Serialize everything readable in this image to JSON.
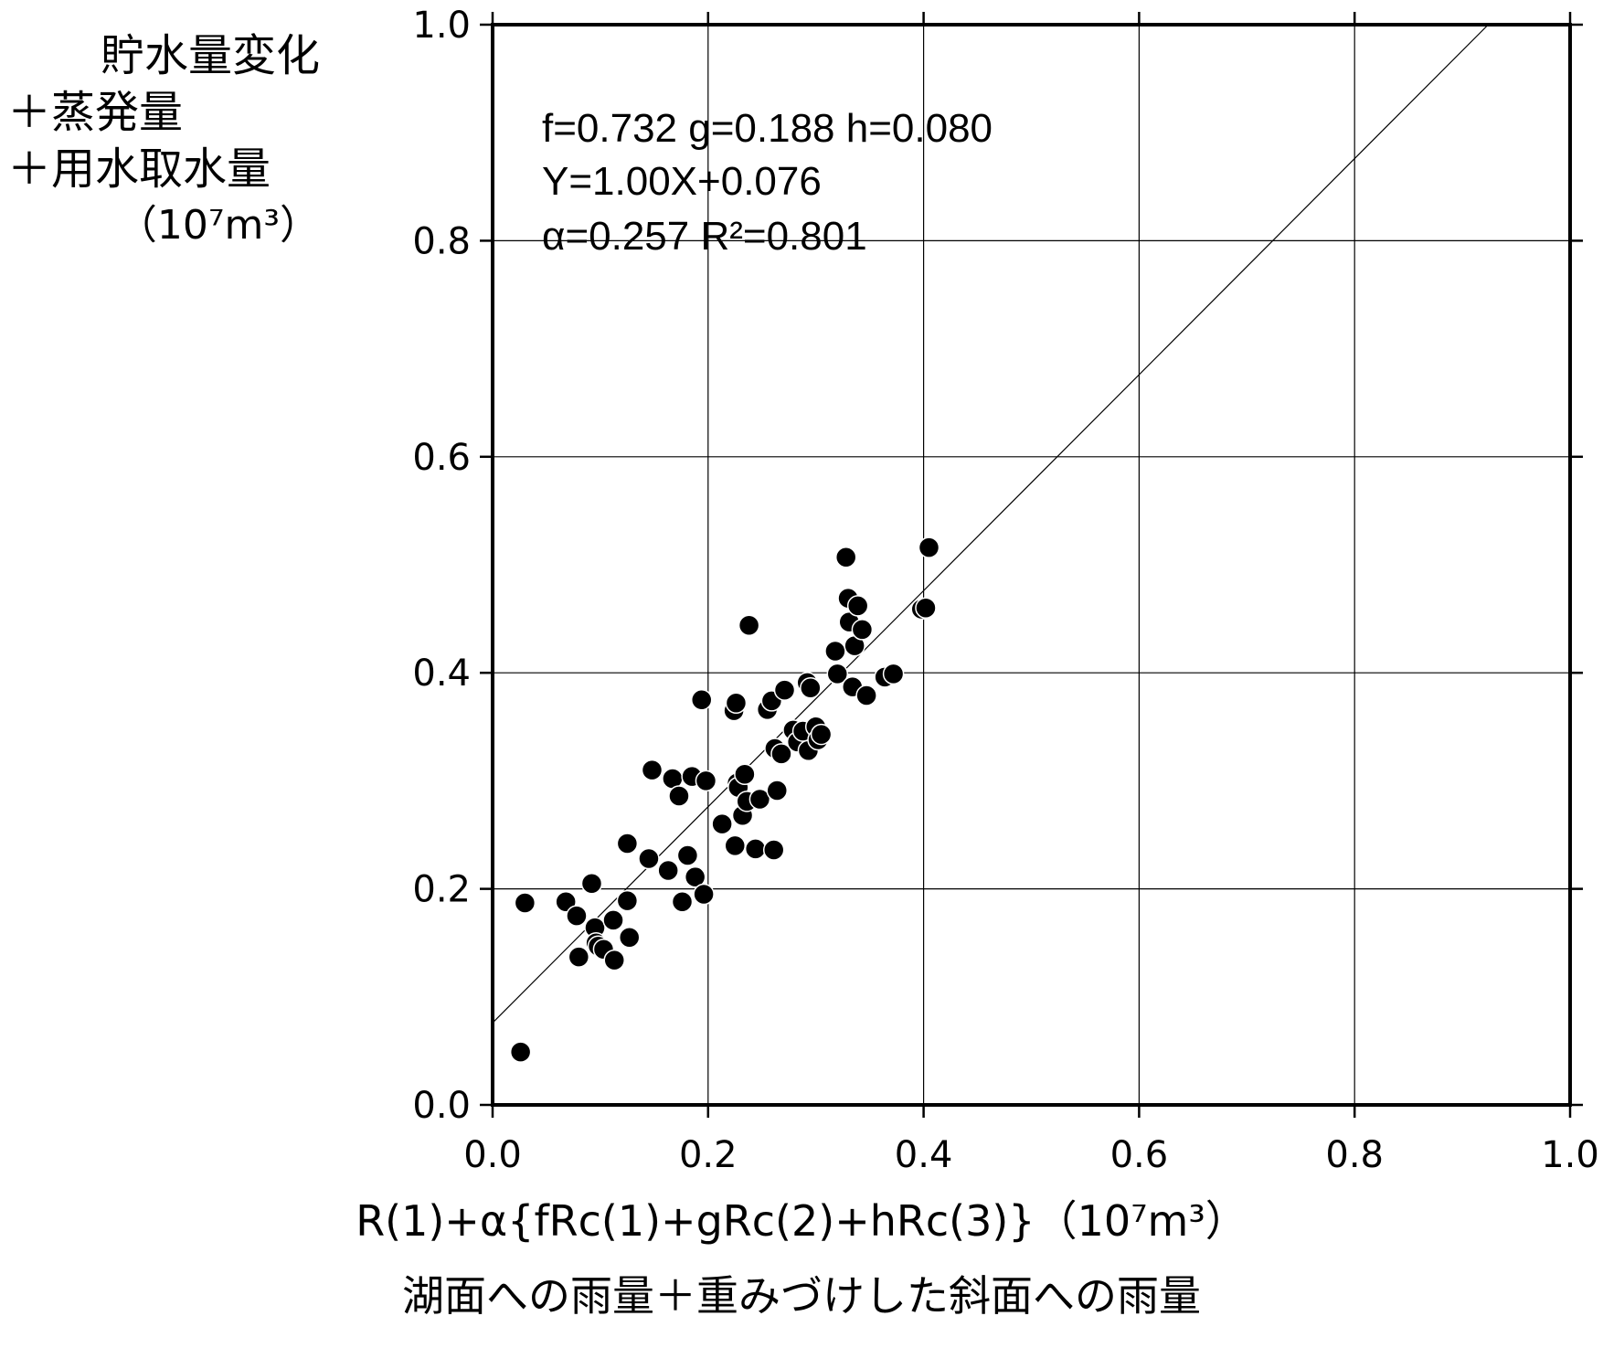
{
  "chart_data": {
    "type": "scatter",
    "ylabel_lines": [
      "貯水量変化",
      "＋蒸発量",
      "＋用水取水量",
      "（10⁷m³）"
    ],
    "xlabel_lines": [
      "R(1)+α{fRc(1)+gRc(2)+hRc(3)}（10⁷m³）",
      "湖面への雨量＋重みづけした斜面への雨量"
    ],
    "annotations": [
      "f=0.732 g=0.188 h=0.080",
      "Y=1.00X+0.076",
      "α=0.257  R²=0.801"
    ],
    "xlim": [
      0,
      1.0
    ],
    "ylim": [
      0,
      1.0
    ],
    "xticks": [
      "0.0",
      "0.2",
      "0.4",
      "0.6",
      "0.8",
      "1.0"
    ],
    "yticks": [
      "0.0",
      "0.2",
      "0.4",
      "0.6",
      "0.8",
      "1.0"
    ],
    "grid": true,
    "regression_line": {
      "slope": 1.0,
      "intercept": 0.076
    },
    "points": [
      [
        0.026,
        0.049
      ],
      [
        0.03,
        0.187
      ],
      [
        0.068,
        0.188
      ],
      [
        0.078,
        0.175
      ],
      [
        0.08,
        0.137
      ],
      [
        0.092,
        0.205
      ],
      [
        0.095,
        0.164
      ],
      [
        0.096,
        0.15
      ],
      [
        0.098,
        0.147
      ],
      [
        0.103,
        0.144
      ],
      [
        0.112,
        0.171
      ],
      [
        0.113,
        0.134
      ],
      [
        0.125,
        0.189
      ],
      [
        0.125,
        0.242
      ],
      [
        0.127,
        0.155
      ],
      [
        0.145,
        0.228
      ],
      [
        0.148,
        0.31
      ],
      [
        0.163,
        0.217
      ],
      [
        0.167,
        0.302
      ],
      [
        0.173,
        0.286
      ],
      [
        0.176,
        0.188
      ],
      [
        0.181,
        0.231
      ],
      [
        0.185,
        0.304
      ],
      [
        0.188,
        0.211
      ],
      [
        0.194,
        0.375
      ],
      [
        0.196,
        0.195
      ],
      [
        0.198,
        0.3
      ],
      [
        0.213,
        0.26
      ],
      [
        0.224,
        0.365
      ],
      [
        0.225,
        0.24
      ],
      [
        0.226,
        0.372
      ],
      [
        0.227,
        0.298
      ],
      [
        0.228,
        0.294
      ],
      [
        0.232,
        0.268
      ],
      [
        0.234,
        0.306
      ],
      [
        0.236,
        0.281
      ],
      [
        0.238,
        0.444
      ],
      [
        0.244,
        0.237
      ],
      [
        0.248,
        0.283
      ],
      [
        0.255,
        0.366
      ],
      [
        0.259,
        0.374
      ],
      [
        0.261,
        0.236
      ],
      [
        0.262,
        0.33
      ],
      [
        0.264,
        0.291
      ],
      [
        0.268,
        0.325
      ],
      [
        0.271,
        0.384
      ],
      [
        0.279,
        0.347
      ],
      [
        0.283,
        0.336
      ],
      [
        0.288,
        0.346
      ],
      [
        0.292,
        0.391
      ],
      [
        0.293,
        0.328
      ],
      [
        0.295,
        0.386
      ],
      [
        0.3,
        0.35
      ],
      [
        0.302,
        0.338
      ],
      [
        0.305,
        0.343
      ],
      [
        0.318,
        0.42
      ],
      [
        0.32,
        0.399
      ],
      [
        0.328,
        0.507
      ],
      [
        0.33,
        0.469
      ],
      [
        0.331,
        0.447
      ],
      [
        0.334,
        0.387
      ],
      [
        0.336,
        0.425
      ],
      [
        0.339,
        0.462
      ],
      [
        0.343,
        0.44
      ],
      [
        0.347,
        0.379
      ],
      [
        0.364,
        0.396
      ],
      [
        0.372,
        0.399
      ],
      [
        0.398,
        0.459
      ],
      [
        0.402,
        0.46
      ],
      [
        0.405,
        0.516
      ]
    ]
  }
}
